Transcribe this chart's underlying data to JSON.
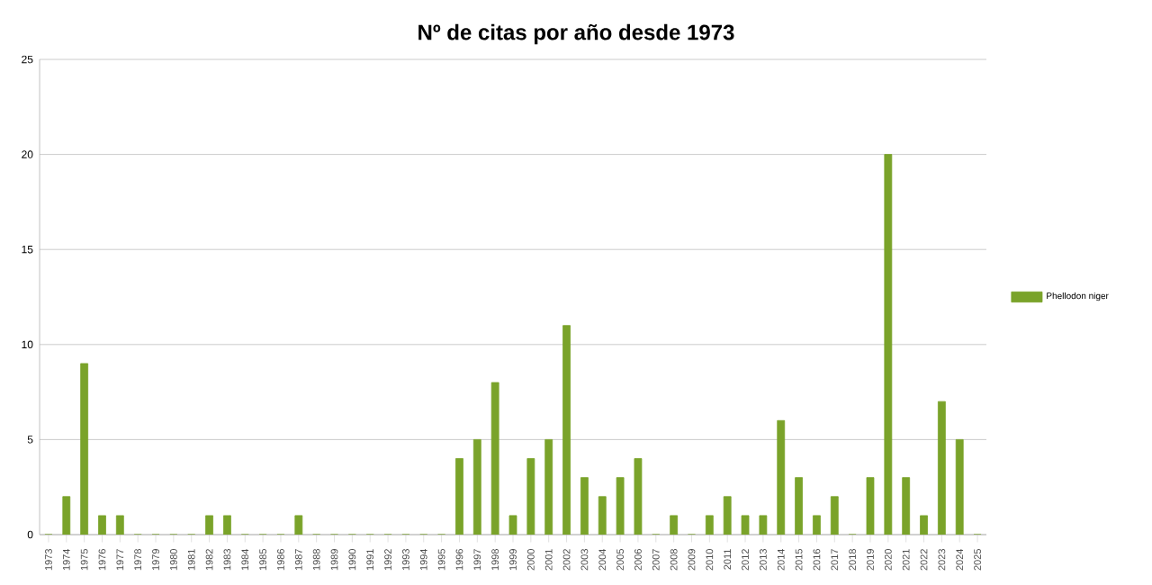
{
  "chart_data": {
    "type": "bar",
    "title": "Nº de citas por año desde 1973",
    "categories": [
      "1973",
      "1974",
      "1975",
      "1976",
      "1977",
      "1978",
      "1979",
      "1980",
      "1981",
      "1982",
      "1983",
      "1984",
      "1985",
      "1986",
      "1987",
      "1988",
      "1989",
      "1990",
      "1991",
      "1992",
      "1993",
      "1994",
      "1995",
      "1996",
      "1997",
      "1998",
      "1999",
      "2000",
      "2001",
      "2002",
      "2003",
      "2004",
      "2005",
      "2006",
      "2007",
      "2008",
      "2009",
      "2010",
      "2011",
      "2012",
      "2013",
      "2014",
      "2015",
      "2016",
      "2017",
      "2018",
      "2019",
      "2020",
      "2021",
      "2022",
      "2023",
      "2024",
      "2025"
    ],
    "series": [
      {
        "name": "Phellodon niger",
        "color": "#7aa32a",
        "values": [
          0,
          2,
          9,
          1,
          1,
          0,
          0,
          0,
          0,
          1,
          1,
          0,
          0,
          0,
          1,
          0,
          0,
          0,
          0,
          0,
          0,
          0,
          0,
          4,
          5,
          8,
          1,
          4,
          5,
          11,
          3,
          2,
          3,
          4,
          0,
          1,
          0,
          1,
          2,
          1,
          1,
          6,
          3,
          1,
          2,
          0,
          3,
          20,
          3,
          1,
          7,
          5,
          0
        ]
      }
    ],
    "ylim": [
      0,
      25
    ],
    "yticks": [
      0,
      5,
      10,
      15,
      20,
      25
    ],
    "grid": "y",
    "legend": "right"
  }
}
